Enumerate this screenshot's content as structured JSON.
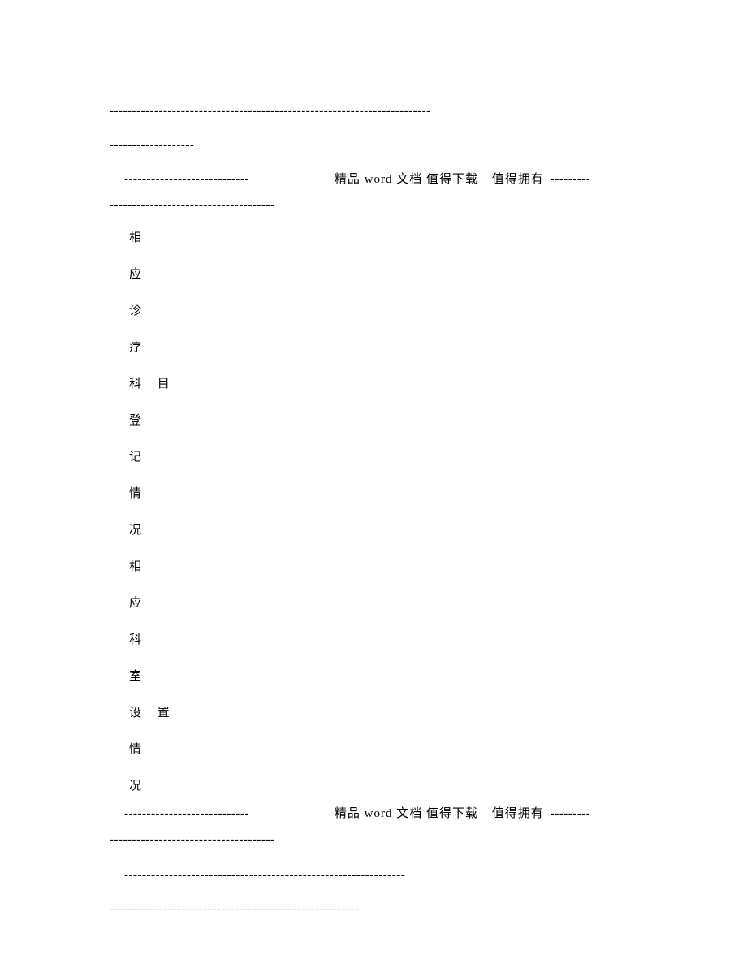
{
  "dashes": {
    "top_long": "------------------------------------------------------------------------",
    "top_short": "-------------------",
    "header_left": "----------------------------",
    "header_right": "---------",
    "after_header": "-------------------------------------",
    "bottom1": "---------------------------------------------------------------",
    "bottom2": "--------------------------------------------------------"
  },
  "header": {
    "text_main": "精品 word 文档  值得下载",
    "text_right": "值得拥有"
  },
  "vertical": {
    "chars": [
      "相",
      "应",
      "诊",
      "疗",
      "科 目",
      "登",
      "记",
      "情",
      "况",
      "相",
      "应",
      "科",
      "室",
      "设 置",
      "情",
      "况"
    ]
  },
  "footer": {
    "text_main": "精品 word 文档  值得下载",
    "text_right": "值得拥有"
  },
  "colors": {
    "background": "#ffffff",
    "text": "#000000"
  },
  "typography": {
    "font_family": "SimSun",
    "font_size": 15
  }
}
